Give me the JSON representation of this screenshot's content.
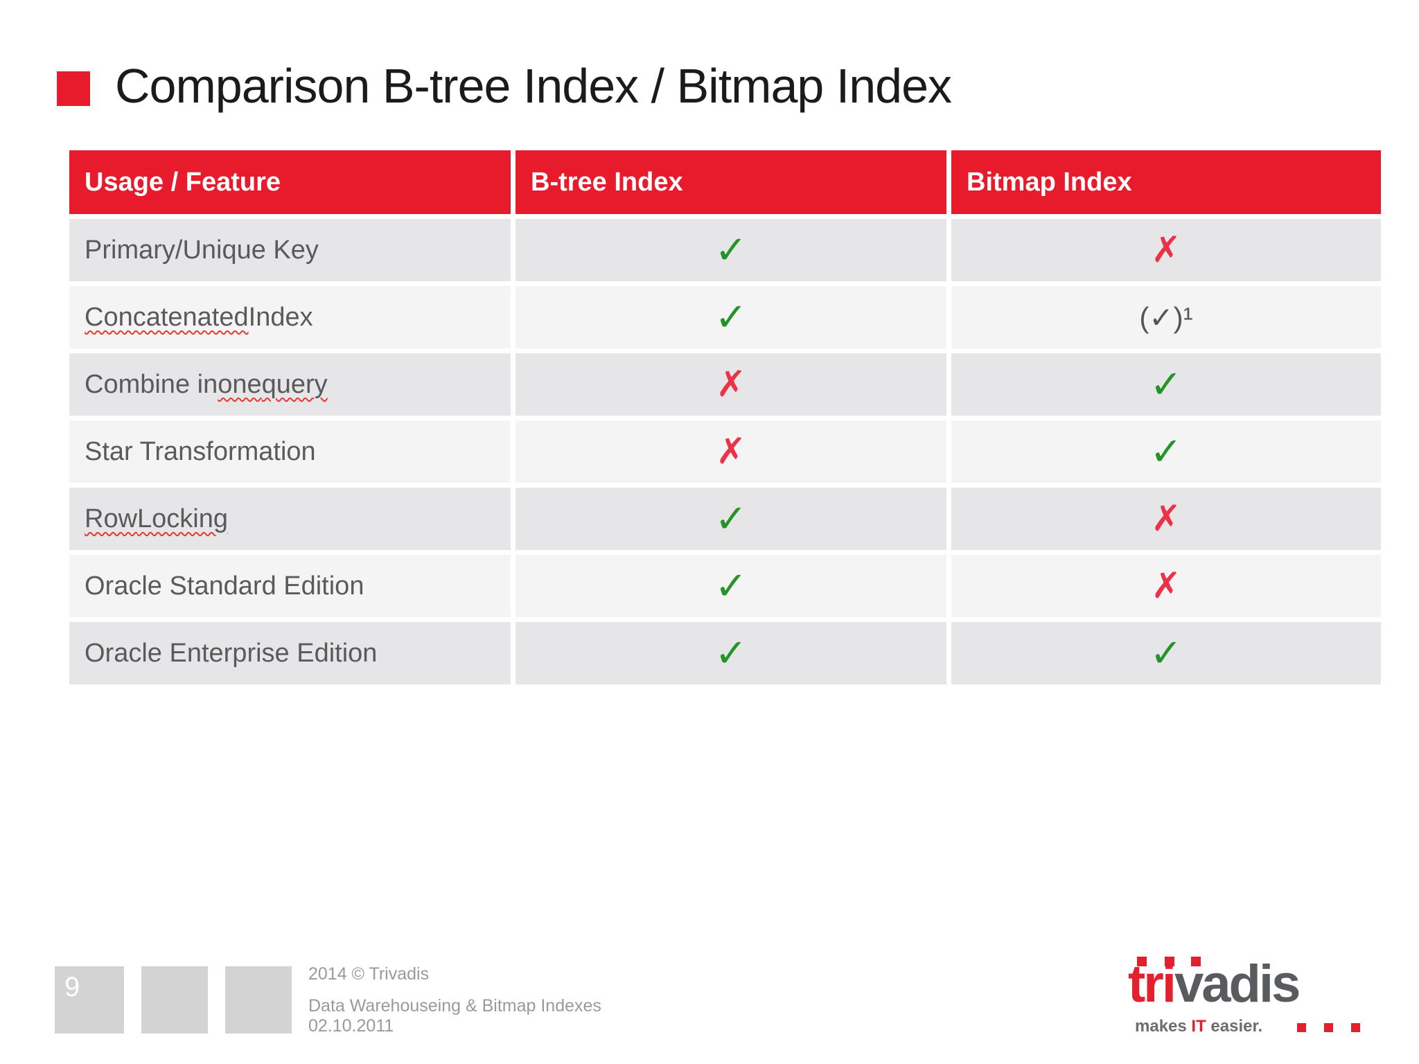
{
  "slide": {
    "title": "Comparison B-tree Index / Bitmap Index"
  },
  "colors": {
    "accent_red": "#e81b2c",
    "check_green": "#259427",
    "cross_red": "#ea3348",
    "squiggle_red": "#e8372f",
    "row_dark": "#e6e6e8",
    "row_light": "#f4f4f5",
    "cell_text_gray": "#5a5a5a",
    "footer_gray": "#9a9a9a",
    "logo_gray": "#595b5f"
  },
  "table": {
    "headers": [
      "Usage / Feature",
      "B-tree Index",
      "Bitmap Index"
    ],
    "marks": {
      "check": {
        "glyph": "✓",
        "class": "mark-check",
        "name": "check-icon"
      },
      "cross": {
        "glyph": "✗",
        "class": "mark-cross",
        "name": "cross-icon"
      },
      "check_paren": {
        "glyph": "(✓)¹",
        "class": "mark-paren",
        "name": "check-conditional-icon"
      }
    },
    "rows": [
      {
        "feature": [
          {
            "t": "Primary/Unique Key",
            "sq": false
          }
        ],
        "btree": "check",
        "bitmap": "cross"
      },
      {
        "feature": [
          {
            "t": "Concatenated",
            "sq": true
          },
          {
            "t": " Index",
            "sq": false
          }
        ],
        "btree": "check",
        "bitmap": "check_paren"
      },
      {
        "feature": [
          {
            "t": "Combine in ",
            "sq": false
          },
          {
            "t": "one",
            "sq": true
          },
          {
            "t": " ",
            "sq": false
          },
          {
            "t": "query",
            "sq": true
          }
        ],
        "btree": "cross",
        "bitmap": "check"
      },
      {
        "feature": [
          {
            "t": "Star Transformation",
            "sq": false
          }
        ],
        "btree": "cross",
        "bitmap": "check"
      },
      {
        "feature": [
          {
            "t": "Row",
            "sq": true
          },
          {
            "t": " ",
            "sq": false
          },
          {
            "t": "Locking",
            "sq": true
          }
        ],
        "btree": "check",
        "bitmap": "cross"
      },
      {
        "feature": [
          {
            "t": "Oracle Standard Edition",
            "sq": false
          }
        ],
        "btree": "check",
        "bitmap": "cross"
      },
      {
        "feature": [
          {
            "t": "Oracle Enterprise Edition",
            "sq": false
          }
        ],
        "btree": "check",
        "bitmap": "check"
      }
    ]
  },
  "footer": {
    "page_number": "9",
    "copyright": "2014 © Trivadis",
    "subject": "Data Warehouseing & Bitmap Indexes",
    "date": "02.10.2011"
  },
  "logo": {
    "brand_red": "tri",
    "brand_gray": "vadis",
    "tagline": [
      {
        "t": "makes ",
        "red": false
      },
      {
        "t": "IT",
        "red": true
      },
      {
        "t": " easier.",
        "red": false
      }
    ]
  }
}
